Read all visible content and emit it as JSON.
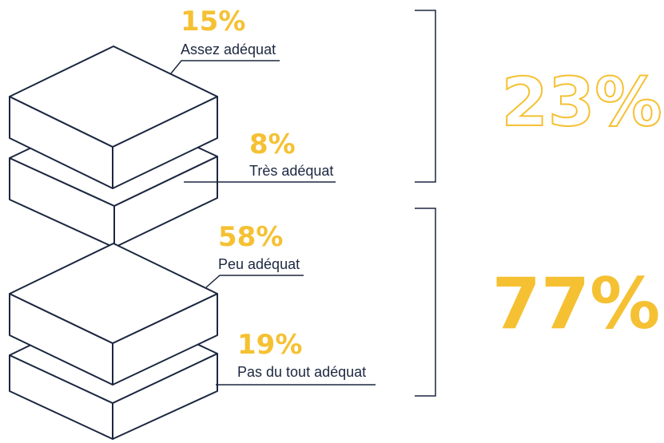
{
  "colors": {
    "accent": "#f5c133",
    "ink": "#1c2740"
  },
  "segments": [
    {
      "value": "15%",
      "label": "Assez adéquat"
    },
    {
      "value": "8%",
      "label": "Très adéquat"
    },
    {
      "value": "58%",
      "label": "Peu adéquat"
    },
    {
      "value": "19%",
      "label": "Pas du tout adéquat"
    }
  ],
  "totals": [
    {
      "value": "23%",
      "style": "outline"
    },
    {
      "value": "77%",
      "style": "filled"
    }
  ]
}
